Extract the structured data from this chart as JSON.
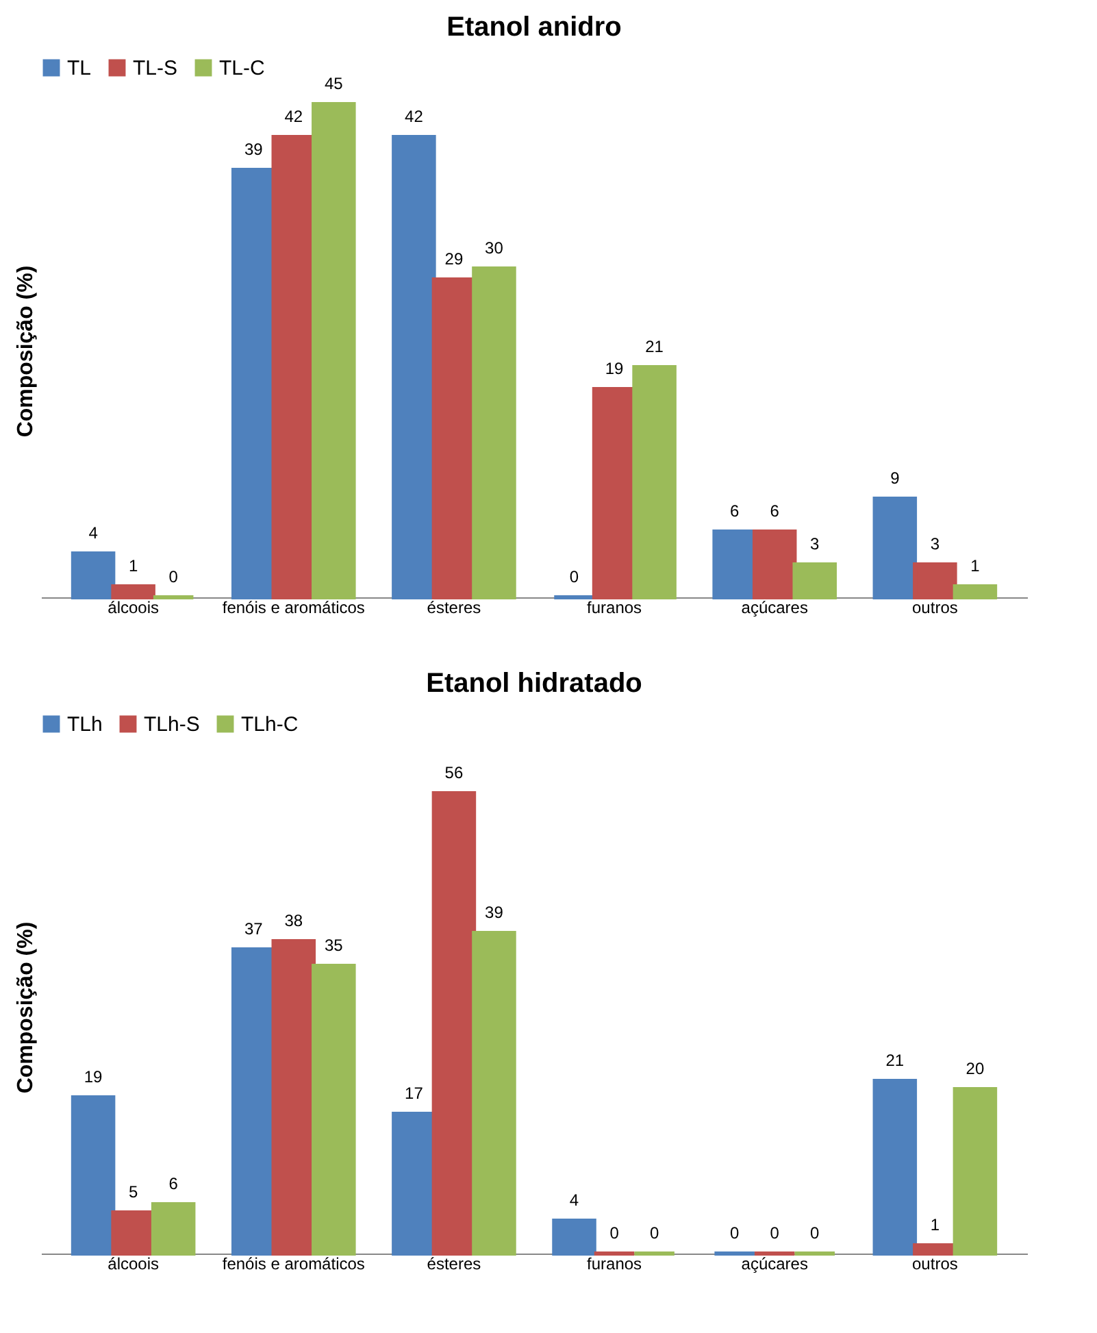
{
  "chart_data": [
    {
      "type": "bar",
      "title": "Etanol anidro",
      "ylabel": "Composição  (%)",
      "categories": [
        "álcoois",
        "fenóis e aromáticos",
        "ésteres",
        "furanos",
        "açúcares",
        "outros"
      ],
      "series": [
        {
          "name": "TL",
          "color": "#4f81bd",
          "values": [
            4,
            39,
            42,
            0,
            6,
            9
          ]
        },
        {
          "name": "TL-S",
          "color": "#c0504d",
          "values": [
            1,
            42,
            29,
            19,
            6,
            3
          ]
        },
        {
          "name": "TL-C",
          "color": "#9bbb59",
          "values": [
            0,
            45,
            30,
            21,
            3,
            1
          ]
        }
      ],
      "data_labels": true,
      "legend": "top",
      "grid": false,
      "tick_labels": "x"
    },
    {
      "type": "bar",
      "title": "Etanol hidratado",
      "ylabel": "Composição  (%)",
      "categories": [
        "álcoois",
        "fenóis e aromáticos",
        "ésteres",
        "furanos",
        "açúcares",
        "outros"
      ],
      "series": [
        {
          "name": "TLh",
          "color": "#4f81bd",
          "values": [
            19,
            37,
            17,
            4,
            0,
            21
          ]
        },
        {
          "name": "TLh-S",
          "color": "#c0504d",
          "values": [
            5,
            38,
            56,
            0,
            0,
            1
          ]
        },
        {
          "name": "TLh-C",
          "color": "#9bbb59",
          "values": [
            6,
            35,
            39,
            0,
            0,
            20
          ]
        }
      ],
      "data_labels": true,
      "legend": "top",
      "grid": false,
      "tick_labels": "x"
    }
  ]
}
